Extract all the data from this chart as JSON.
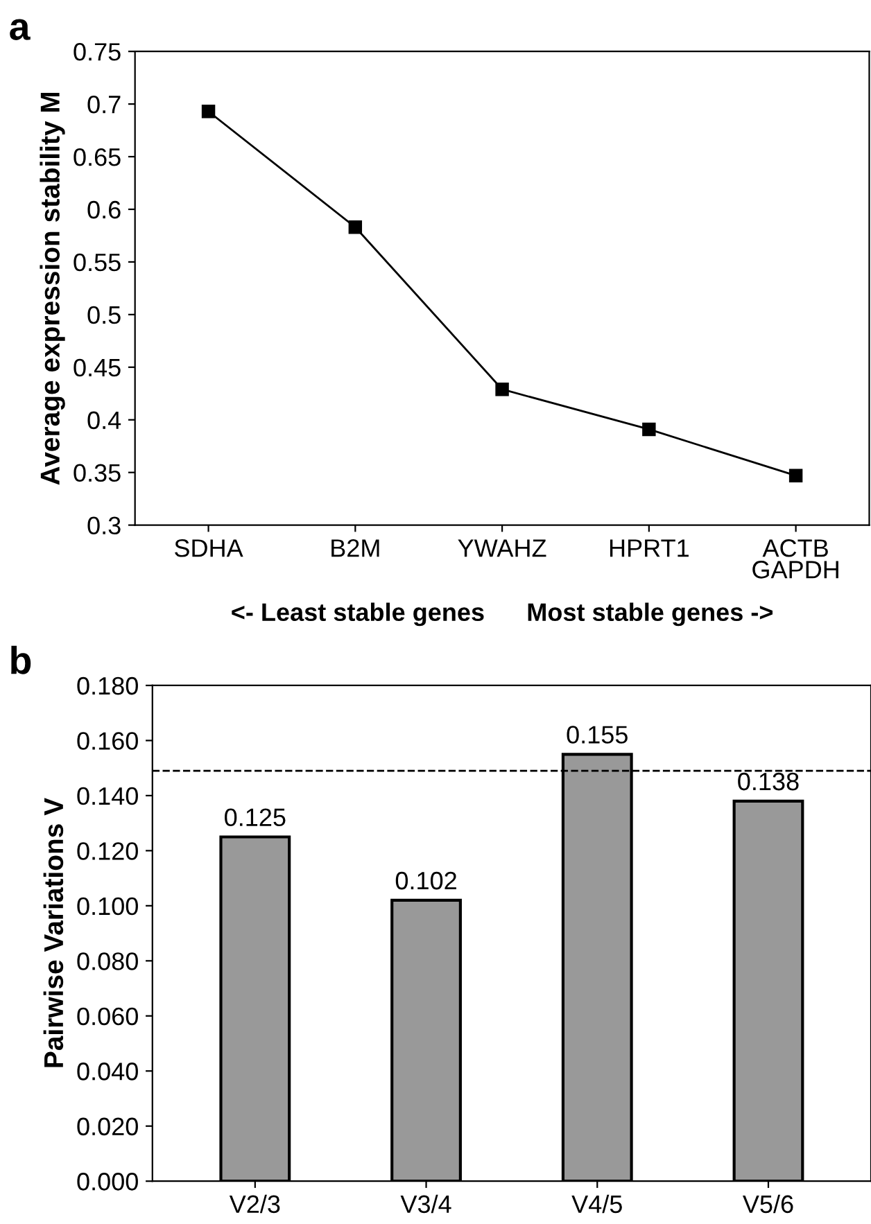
{
  "chart_data": [
    {
      "type": "line",
      "title": "a",
      "ylabel": "Average expression stability M",
      "xlabel": "<- Least stable genes      Most stable genes ->",
      "categories": [
        "SDHA",
        "B2M",
        "YWAHZ",
        "HPRT1",
        "ACTB\nGAPDH"
      ],
      "series": [
        {
          "color": "#000000",
          "values": [
            0.693,
            0.583,
            0.429,
            0.391,
            0.347
          ]
        }
      ],
      "marker": "square",
      "line_style": "solid",
      "grid": false,
      "ylim": [
        0.3,
        0.75
      ],
      "yticks": [
        0.3,
        0.35,
        0.4,
        0.45,
        0.5,
        0.55,
        0.6,
        0.65,
        0.7,
        0.75
      ]
    },
    {
      "type": "bar",
      "title": "b",
      "ylabel": "Pairwise Variations V",
      "categories": [
        "V2/3",
        "V3/4",
        "V4/5",
        "V5/6"
      ],
      "series": [
        {
          "color": "#999999",
          "values": [
            0.125,
            0.102,
            0.155,
            0.138
          ]
        }
      ],
      "data_labels": true,
      "grid": false,
      "ref_lines": [
        {
          "axis": "y",
          "value": 0.149,
          "label": null,
          "color": "#000000",
          "line_style": "dashed"
        }
      ],
      "ylim": [
        0,
        0.18
      ],
      "yticks": [
        {
          "value": 0,
          "label": "0.000"
        },
        {
          "value": 0.02,
          "label": "0.020"
        },
        {
          "value": 0.04,
          "label": "0.040"
        },
        {
          "value": 0.06,
          "label": "0.060"
        },
        {
          "value": 0.08,
          "label": "0.080"
        },
        {
          "value": 0.1,
          "label": "0.100"
        },
        {
          "value": 0.12,
          "label": "0.120"
        },
        {
          "value": 0.14,
          "label": "0.140"
        },
        {
          "value": 0.16,
          "label": "0.160"
        },
        {
          "value": 0.18,
          "label": "0.180"
        }
      ]
    }
  ]
}
